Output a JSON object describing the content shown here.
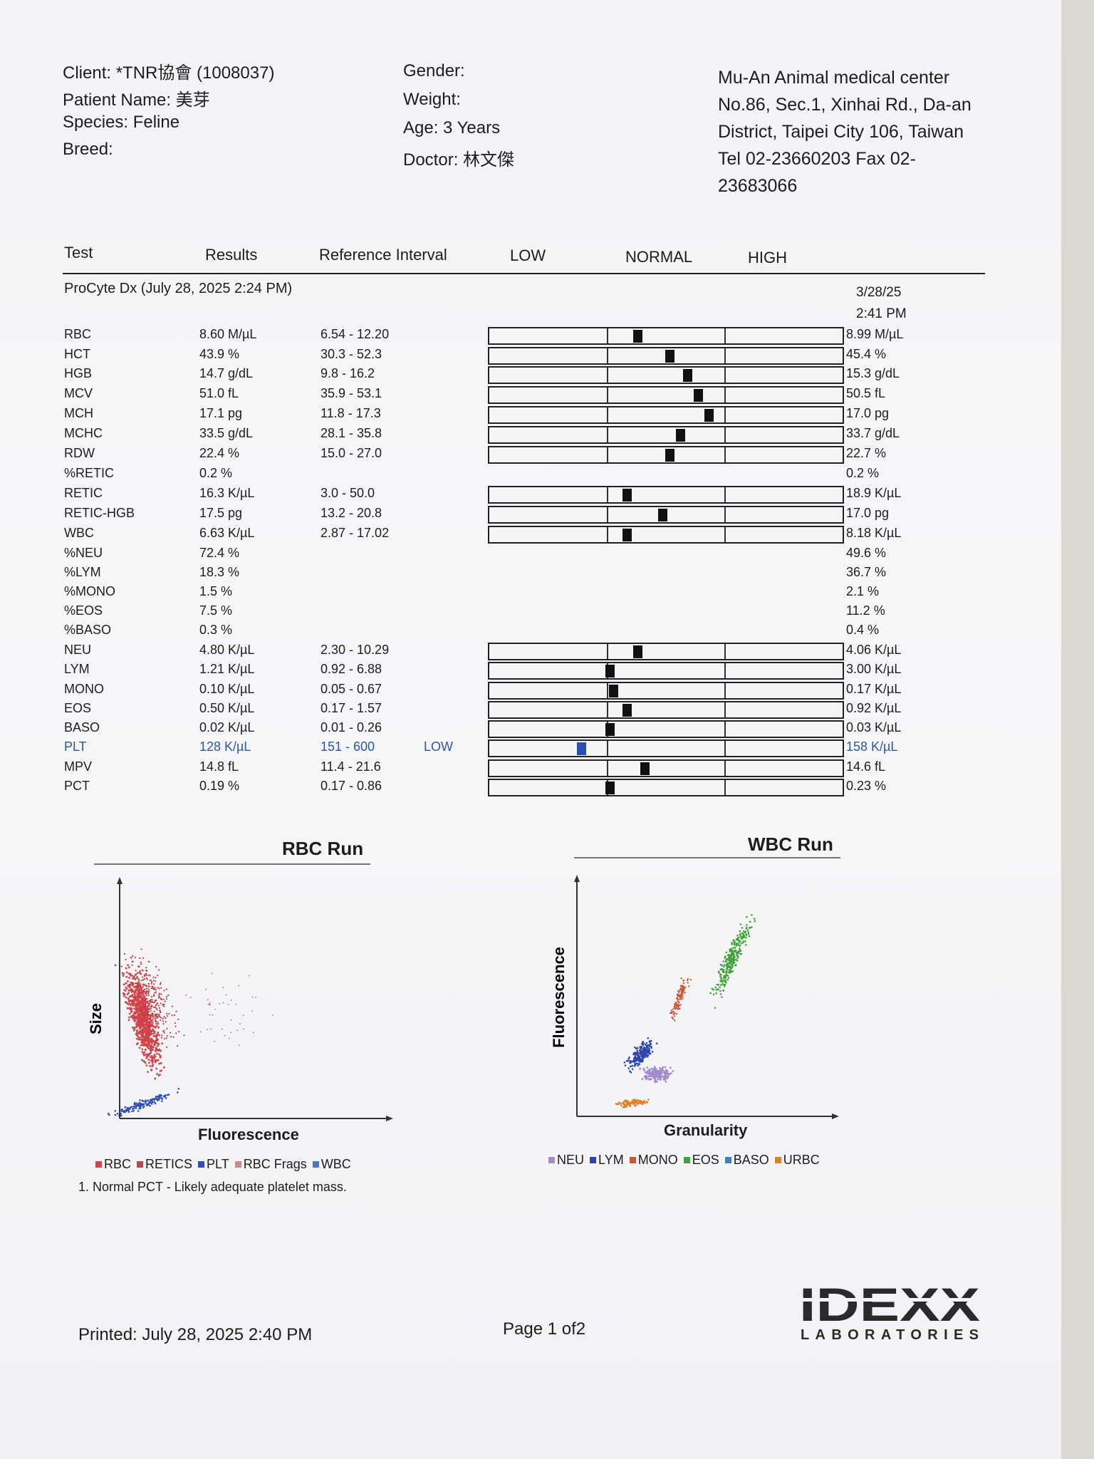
{
  "header": {
    "client": "Client: *TNR協會 (1008037)",
    "patient": "Patient Name: 美芽",
    "species": "Species: Feline",
    "breed": "Breed:",
    "gender": "Gender:",
    "weight": "Weight:",
    "age": "Age: 3 Years",
    "doctor": "Doctor: 林文傑",
    "clinic_name": "Mu-An Animal medical center",
    "clinic_addr1": "No.86, Sec.1, Xinhai Rd., Da-an",
    "clinic_addr2": "District, Taipei City 106, Taiwan",
    "clinic_tel": "Tel 02-23660203  Fax 02-",
    "clinic_fax2": "23683066"
  },
  "columns": {
    "test": "Test",
    "results": "Results",
    "ref": "Reference Interval",
    "low": "LOW",
    "normal": "NORMAL",
    "high": "HIGH"
  },
  "instrument": "ProCyte Dx (July 28, 2025 2:24 PM)",
  "previous": {
    "date": "3/28/25",
    "time": "2:41 PM"
  },
  "rows": [
    {
      "name": "RBC",
      "result": "8.60 M/µL",
      "ref": "6.54 - 12.20",
      "flag": "",
      "prev": "8.99 M/µL",
      "bar": true,
      "level": 0.42
    },
    {
      "name": "HCT",
      "result": "43.9 %",
      "ref": "30.3 - 52.3",
      "flag": "",
      "prev": "45.4 %",
      "bar": true,
      "level": 0.51
    },
    {
      "name": "HGB",
      "result": "14.7 g/dL",
      "ref": "9.8 - 16.2",
      "flag": "",
      "prev": "15.3 g/dL",
      "bar": true,
      "level": 0.56
    },
    {
      "name": "MCV",
      "result": "51.0 fL",
      "ref": "35.9 - 53.1",
      "flag": "",
      "prev": "50.5 fL",
      "bar": true,
      "level": 0.59
    },
    {
      "name": "MCH",
      "result": "17.1 pg",
      "ref": "11.8 - 17.3",
      "flag": "",
      "prev": "17.0 pg",
      "bar": true,
      "level": 0.62
    },
    {
      "name": "MCHC",
      "result": "33.5 g/dL",
      "ref": "28.1 - 35.8",
      "flag": "",
      "prev": "33.7 g/dL",
      "bar": true,
      "level": 0.54
    },
    {
      "name": "RDW",
      "result": "22.4 %",
      "ref": "15.0 - 27.0",
      "flag": "",
      "prev": "22.7 %",
      "bar": true,
      "level": 0.51
    },
    {
      "name": "%RETIC",
      "result": "0.2 %",
      "ref": "",
      "flag": "",
      "prev": "0.2 %",
      "bar": false,
      "level": 0
    },
    {
      "name": "RETIC",
      "result": "16.3 K/µL",
      "ref": "3.0 - 50.0",
      "flag": "",
      "prev": "18.9 K/µL",
      "bar": true,
      "level": 0.39
    },
    {
      "name": "RETIC-HGB",
      "result": "17.5 pg",
      "ref": "13.2 - 20.8",
      "flag": "",
      "prev": "17.0 pg",
      "bar": true,
      "level": 0.49
    },
    {
      "name": "WBC",
      "result": "6.63 K/µL",
      "ref": "2.87 - 17.02",
      "flag": "",
      "prev": "8.18 K/µL",
      "bar": true,
      "level": 0.39
    },
    {
      "name": "%NEU",
      "result": "72.4 %",
      "ref": "",
      "flag": "",
      "prev": "49.6 %",
      "bar": false,
      "level": 0
    },
    {
      "name": "%LYM",
      "result": "18.3 %",
      "ref": "",
      "flag": "",
      "prev": "36.7 %",
      "bar": false,
      "level": 0
    },
    {
      "name": "%MONO",
      "result": "1.5 %",
      "ref": "",
      "flag": "",
      "prev": "2.1 %",
      "bar": false,
      "level": 0
    },
    {
      "name": "%EOS",
      "result": "7.5 %",
      "ref": "",
      "flag": "",
      "prev": "11.2 %",
      "bar": false,
      "level": 0
    },
    {
      "name": "%BASO",
      "result": "0.3 %",
      "ref": "",
      "flag": "",
      "prev": "0.4 %",
      "bar": false,
      "level": 0
    },
    {
      "name": "NEU",
      "result": "4.80 K/µL",
      "ref": "2.30 - 10.29",
      "flag": "",
      "prev": "4.06 K/µL",
      "bar": true,
      "level": 0.42
    },
    {
      "name": "LYM",
      "result": "1.21 K/µL",
      "ref": "0.92 - 6.88",
      "flag": "",
      "prev": "3.00 K/µL",
      "bar": true,
      "level": 0.34
    },
    {
      "name": "MONO",
      "result": "0.10 K/µL",
      "ref": "0.05 - 0.67",
      "flag": "",
      "prev": "0.17 K/µL",
      "bar": true,
      "level": 0.35
    },
    {
      "name": "EOS",
      "result": "0.50 K/µL",
      "ref": "0.17 - 1.57",
      "flag": "",
      "prev": "0.92 K/µL",
      "bar": true,
      "level": 0.39
    },
    {
      "name": "BASO",
      "result": "0.02 K/µL",
      "ref": "0.01 - 0.26",
      "flag": "",
      "prev": "0.03 K/µL",
      "bar": true,
      "level": 0.34
    },
    {
      "name": "PLT",
      "result": "128 K/µL",
      "ref": "151 - 600",
      "flag": "LOW",
      "prev": "158 K/µL",
      "bar": true,
      "level": 0.26
    },
    {
      "name": "MPV",
      "result": "14.8 fL",
      "ref": "11.4 - 21.6",
      "flag": "",
      "prev": "14.6 fL",
      "bar": true,
      "level": 0.44
    },
    {
      "name": "PCT",
      "result": "0.19 %",
      "ref": "0.17 - 0.86",
      "flag": "",
      "prev": "0.23 %",
      "bar": true,
      "level": 0.34
    }
  ],
  "rbc_plot": {
    "title": "RBC Run",
    "xlabel": "Fluorescence",
    "ylabel": "Size",
    "legend": [
      {
        "label": "RBC",
        "color": "#d0454a"
      },
      {
        "label": "RETICS",
        "color": "#b94a4a"
      },
      {
        "label": "PLT",
        "color": "#2f4fb5"
      },
      {
        "label": "RBC Frags",
        "color": "#c98a8a"
      },
      {
        "label": "WBC",
        "color": "#4a78c0"
      }
    ]
  },
  "wbc_plot": {
    "title": "WBC Run",
    "xlabel": "Granularity",
    "ylabel": "Fluorescence",
    "legend": [
      {
        "label": "NEU",
        "color": "#a58bc9"
      },
      {
        "label": "LYM",
        "color": "#2a44b0"
      },
      {
        "label": "MONO",
        "color": "#c9553a"
      },
      {
        "label": "EOS",
        "color": "#3fa33a"
      },
      {
        "label": "BASO",
        "color": "#3f7fc0"
      },
      {
        "label": "URBC",
        "color": "#e07f2a"
      }
    ]
  },
  "note": "1. Normal PCT - Likely adequate platelet mass.",
  "footer": {
    "printed": "Printed: July 28, 2025 2:40 PM",
    "page": "Page 1 of2",
    "logo_top": "IDEXX",
    "logo_bottom": "LABORATORIES"
  }
}
